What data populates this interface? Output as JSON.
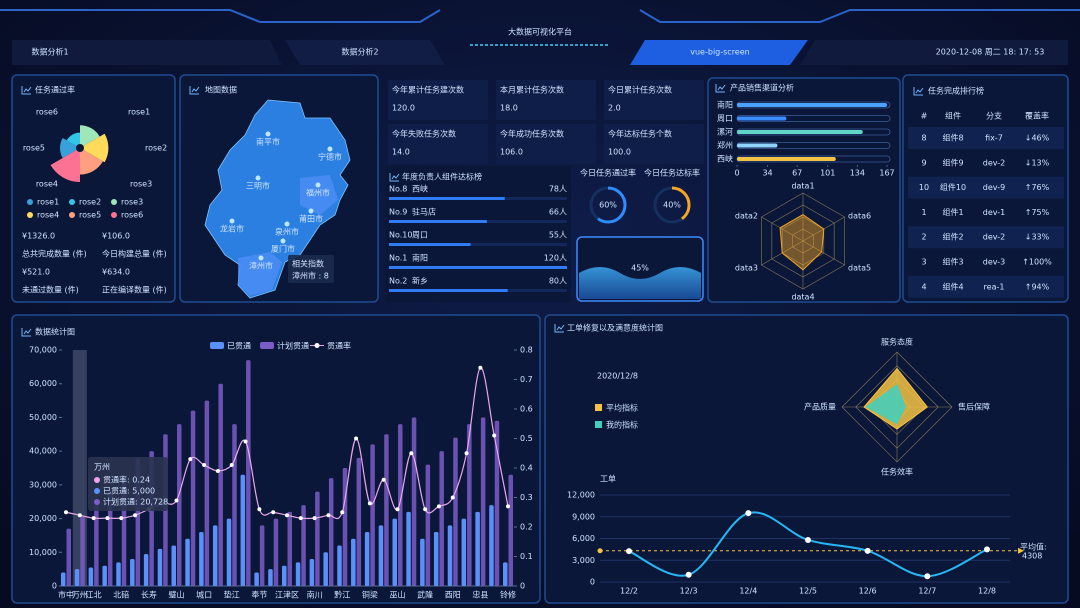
{
  "header": {
    "title": "大数据可视化平台",
    "tabs": [
      "数据分析1",
      "数据分析2",
      "vue-big-screen"
    ],
    "datetime": "2020-12-08 周二 18: 17: 53"
  },
  "pass_rate": {
    "title": "任务通过率",
    "chart_data": {
      "type": "rose",
      "categories": [
        "rose1",
        "rose2",
        "rose3",
        "rose4",
        "rose5",
        "rose6"
      ],
      "values": [
        15,
        10,
        18,
        24,
        22,
        30
      ],
      "colors": [
        "#37a2da",
        "#32c5e9",
        "#9fe6b8",
        "#ffdb5c",
        "#ff9f7f",
        "#fb7293"
      ]
    },
    "stats": [
      {
        "value": "¥1326.0",
        "label": "总共完成数量 (件)"
      },
      {
        "value": "¥106.0",
        "label": "今日构建总量 (件)"
      },
      {
        "value": "¥521.0",
        "label": "未通过数量 (件)"
      },
      {
        "value": "¥634.0",
        "label": "正在编译数量 (件)"
      }
    ]
  },
  "map": {
    "title": "地图数据",
    "cities": [
      "南平市",
      "宁德市",
      "三明市",
      "福州市",
      "莆田市",
      "龙岩市",
      "泉州市",
      "厦门市",
      "漳州市"
    ],
    "tooltip": {
      "title": "相关指数",
      "text": "漳州市 : 8"
    }
  },
  "counters": [
    {
      "label": "今年累计任务建次数",
      "value": "120.0"
    },
    {
      "label": "本月累计任务次数",
      "value": "18.0"
    },
    {
      "label": "今日累计任务次数",
      "value": "2.0"
    },
    {
      "label": "今年失败任务次数",
      "value": "14.0"
    },
    {
      "label": "今年成功任务次数",
      "value": "106.0"
    },
    {
      "label": "今年达标任务个数",
      "value": "100.0"
    }
  ],
  "leaders": {
    "title": "年度负责人组件达标榜",
    "rows": [
      {
        "rank": "No.8",
        "name": "西峡",
        "value": 78,
        "label": "78人"
      },
      {
        "rank": "No.9",
        "name": "驻马店",
        "value": 66,
        "label": "66人"
      },
      {
        "rank": "No.10",
        "name": "周口",
        "value": 55,
        "label": "55人"
      },
      {
        "rank": "No.1",
        "name": "南阳",
        "value": 120,
        "label": "120人"
      },
      {
        "rank": "No.2",
        "name": "新乡",
        "value": 80,
        "label": "80人"
      }
    ]
  },
  "gauges": [
    {
      "label": "今日任务通过率",
      "value": 60,
      "value_label": "60%"
    },
    {
      "label": "今日任务达标率",
      "value": 40,
      "value_label": "40%"
    }
  ],
  "liquid": {
    "value": 45,
    "value_label": "45%"
  },
  "sales": {
    "title": "产品销售渠道分析",
    "chart_data": {
      "type": "bar",
      "orientation": "horizontal",
      "categories": [
        "南阳",
        "周口",
        "漯河",
        "郑州",
        "西峡"
      ],
      "values": [
        167,
        55,
        140,
        45,
        110
      ],
      "colors": [
        "#4aa3ff",
        "#3b8cff",
        "#5fd6c8",
        "#8fd3ff",
        "#f5c344"
      ],
      "xlim": [
        0,
        167
      ],
      "xticks": [
        0,
        34,
        67,
        101,
        134,
        167
      ]
    }
  },
  "sales_radar": {
    "chart_data": {
      "type": "radar",
      "indicators": [
        "data1",
        "data2",
        "data3",
        "data4",
        "data5",
        "data6"
      ],
      "rlim": [
        0,
        100
      ],
      "series": [
        {
          "color": "#f5a623",
          "values": [
            55,
            50,
            45,
            60,
            50,
            55
          ]
        }
      ]
    }
  },
  "ranking": {
    "title": "任务完成排行榜",
    "columns": [
      "#",
      "组件",
      "分支",
      "覆盖率"
    ],
    "rows": [
      [
        "8",
        "组件8",
        "fix-7",
        "↓46%"
      ],
      [
        "9",
        "组件9",
        "dev-2",
        "↓13%"
      ],
      [
        "10",
        "组件10",
        "dev-9",
        "↑76%"
      ],
      [
        "1",
        "组件1",
        "dev-1",
        "↑75%"
      ],
      [
        "2",
        "组件2",
        "dev-2",
        "↓33%"
      ],
      [
        "3",
        "组件3",
        "dev-3",
        "↑100%"
      ],
      [
        "4",
        "组件4",
        "rea-1",
        "↑94%"
      ]
    ]
  },
  "stats_chart": {
    "title": "数据统计图",
    "chart_data": {
      "type": "bar-line",
      "categories": [
        "市中",
        "万州",
        "江北",
        null,
        "北碚",
        null,
        "长寿",
        null,
        "璧山",
        null,
        "城口",
        null,
        "垫江",
        null,
        "奉节",
        null,
        "江津区",
        null,
        "南川",
        null,
        "黔江",
        null,
        "铜梁",
        null,
        "巫山",
        null,
        "武隆",
        null,
        "酉阳",
        null,
        "忠县",
        null,
        "铃修"
      ],
      "series": [
        {
          "name": "已贯通",
          "type": "bar",
          "color": "#5b8ff9",
          "values": [
            4000,
            5000,
            5500,
            6000,
            7000,
            8000,
            9500,
            11000,
            12000,
            14000,
            16000,
            18000,
            20000,
            33000,
            4000,
            5000,
            6000,
            7000,
            8000,
            10000,
            12000,
            14000,
            16000,
            18000,
            20000,
            22000,
            14000,
            16000,
            18000,
            20000,
            22000,
            24000,
            7000
          ]
        },
        {
          "name": "计划贯通",
          "type": "bar",
          "color": "#7d5cc8",
          "values": [
            17000,
            20728,
            24000,
            28000,
            33000,
            38000,
            40000,
            45000,
            48000,
            52000,
            55000,
            60000,
            48000,
            67000,
            18000,
            20000,
            22000,
            24000,
            28000,
            32000,
            35000,
            38000,
            42000,
            45000,
            48000,
            50000,
            36000,
            40000,
            44000,
            48000,
            50000,
            49000,
            33000
          ]
        },
        {
          "name": "贯通率",
          "type": "line",
          "axis": "y2",
          "color": "#e9a6ec",
          "values": [
            0.25,
            0.24,
            0.23,
            0.23,
            0.23,
            0.24,
            0.26,
            0.28,
            0.29,
            0.43,
            0.41,
            0.39,
            0.41,
            0.49,
            0.26,
            0.25,
            0.24,
            0.23,
            0.23,
            0.24,
            0.25,
            0.5,
            0.28,
            0.36,
            0.26,
            0.45,
            0.26,
            0.27,
            0.3,
            0.45,
            0.74,
            0.51,
            0.27
          ]
        }
      ],
      "ylim": [
        0,
        70000
      ],
      "yticks": [
        0,
        {
          "value": 10000,
          "label": "10,000"
        },
        {
          "value": 20000,
          "label": "20,000"
        },
        {
          "value": 30000,
          "label": "30,000"
        },
        {
          "value": 40000,
          "label": "40,000"
        },
        {
          "value": 50000,
          "label": "50,000"
        },
        {
          "value": 60000,
          "label": "60,000"
        },
        {
          "value": 70000,
          "label": "70,000"
        }
      ],
      "y2lim": [
        0,
        0.8
      ],
      "y2ticks": [
        0,
        0.1,
        0.2,
        0.3,
        0.4,
        0.5,
        0.6,
        0.7,
        0.8
      ],
      "tooltip": {
        "title": "万州",
        "lines": [
          "贯通率: 0.24",
          "已贯通: 5,000",
          "计划贯通: 20,728"
        ]
      }
    }
  },
  "orders": {
    "title": "工单修复以及满意度统计图",
    "date": "2020/12/8",
    "radar": {
      "type": "radar",
      "indicators": [
        "服务态度",
        "售后保障",
        "任务效率",
        "产品质量"
      ],
      "rlim": [
        0,
        100
      ],
      "series": [
        {
          "name": "平均指标",
          "color": "#f5c344",
          "values": [
            70,
            55,
            40,
            60
          ]
        },
        {
          "name": "我的指标",
          "color": "#3fd0c0",
          "values": [
            40,
            15,
            30,
            55
          ]
        }
      ]
    },
    "line": {
      "type": "line",
      "y_label": "工单",
      "categories": [
        "12/2",
        "12/3",
        "12/4",
        "12/5",
        "12/6",
        "12/7",
        "12/8"
      ],
      "values": [
        4256,
        1000,
        9500,
        5800,
        4300,
        800,
        4500
      ],
      "color": "#29b6f6",
      "ylim": [
        0,
        12000
      ],
      "yticks": [
        0,
        {
          "value": 3000,
          "label": "3,000"
        },
        {
          "value": 6000,
          "label": "6,000"
        },
        {
          "value": 9000,
          "label": "9,000"
        },
        {
          "value": 12000,
          "label": "12,000"
        }
      ],
      "mark_line": {
        "label": "平均值:",
        "value": 4308
      }
    }
  }
}
